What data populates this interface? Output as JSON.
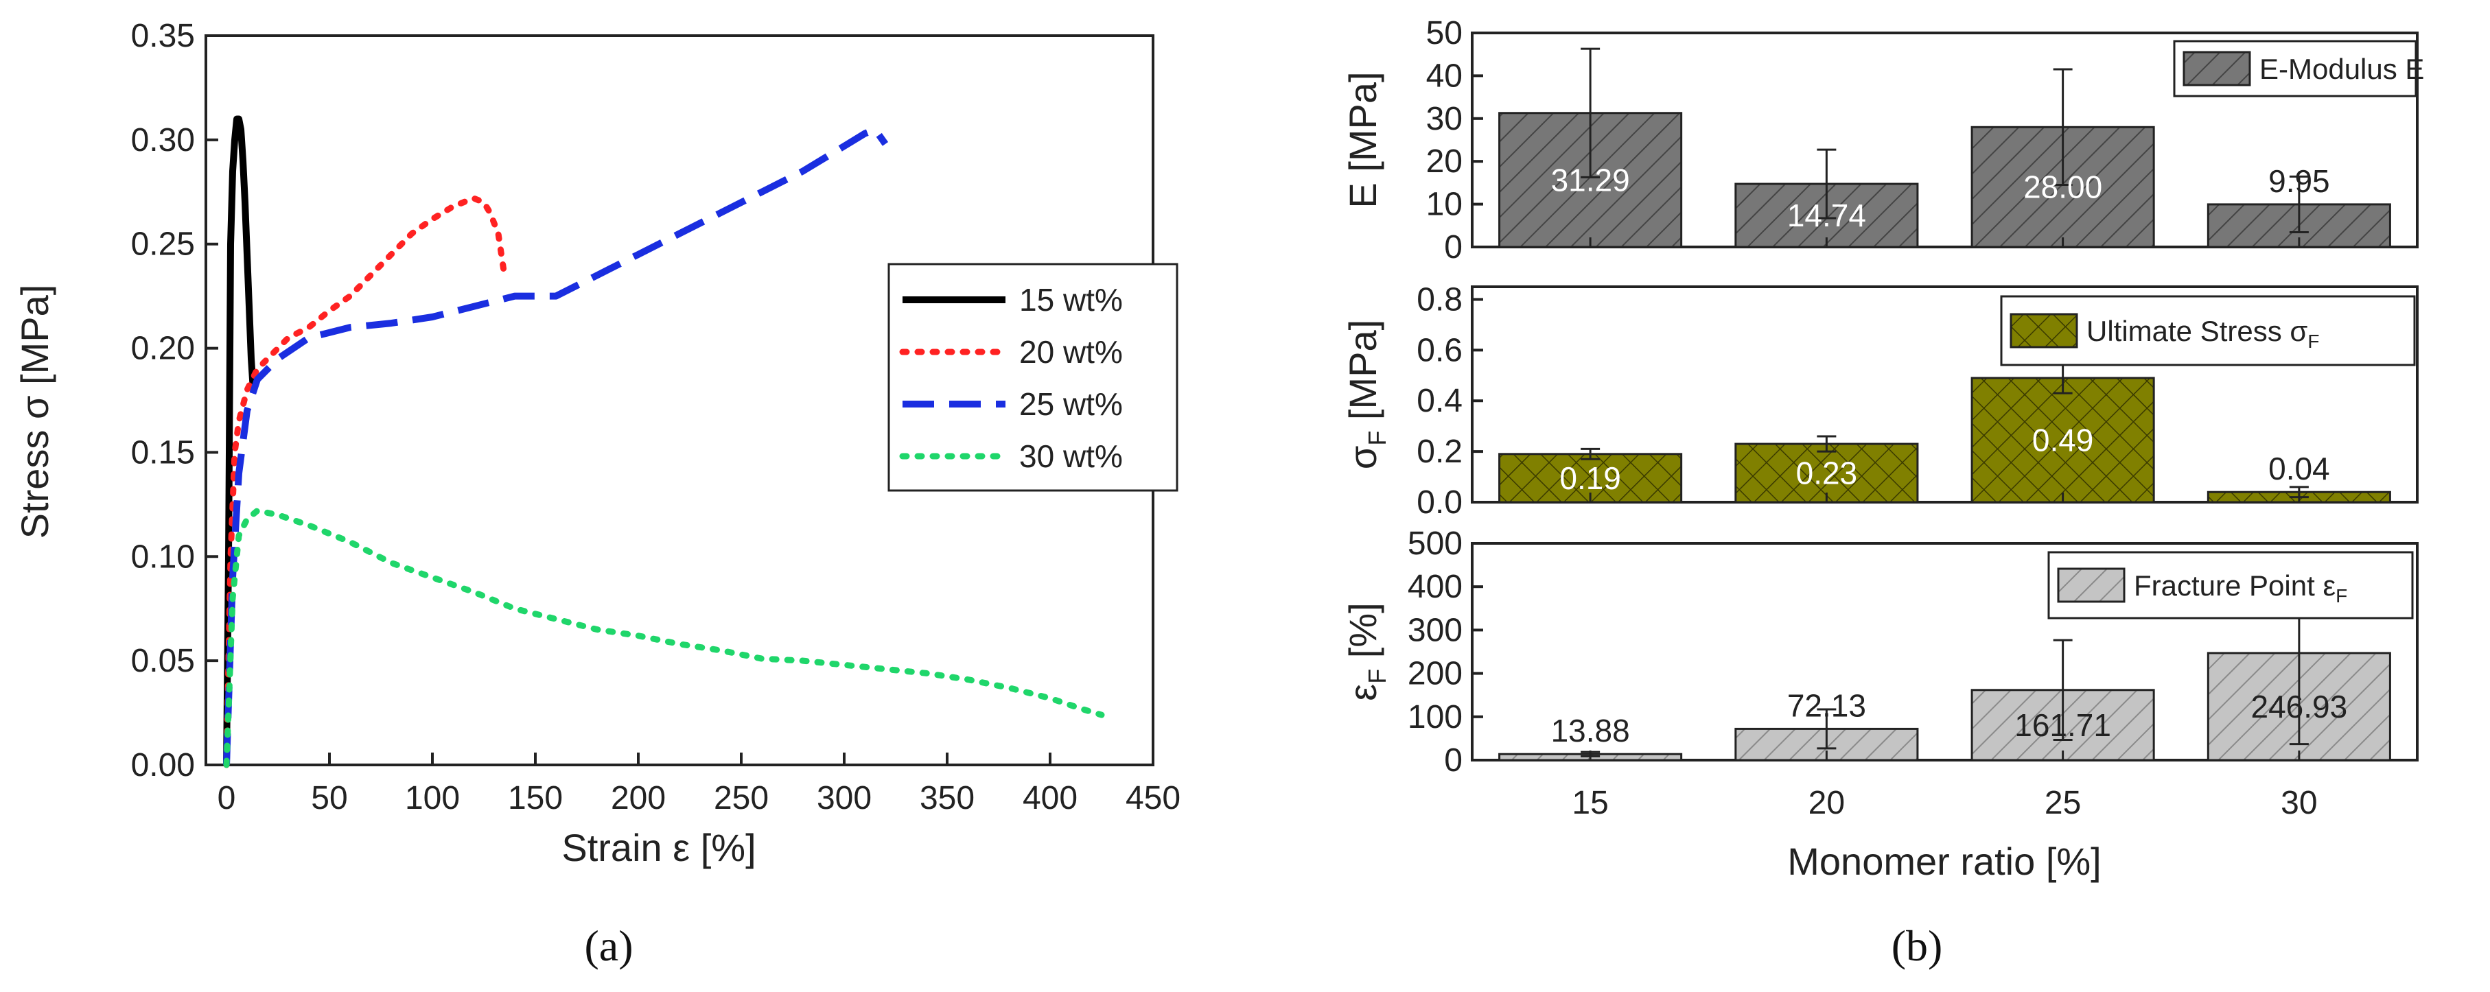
{
  "chart_data": [
    {
      "type": "line",
      "panel": "(a)",
      "xlabel": "Strain ε [%]",
      "ylabel": "Stress σ [MPa]",
      "xlim": [
        -10,
        450
      ],
      "ylim": [
        0,
        0.35
      ],
      "xticks": [
        "0",
        "50",
        "100",
        "150",
        "200",
        "250",
        "300",
        "350",
        "400",
        "450"
      ],
      "yticks": [
        "0.00",
        "0.05",
        "0.10",
        "0.15",
        "0.20",
        "0.25",
        "0.30",
        "0.35"
      ],
      "legend_position": "right",
      "series": [
        {
          "name": "15 wt%",
          "color": "#000000",
          "dash": "solid",
          "x": [
            0,
            1,
            2,
            3,
            4,
            5,
            6,
            7,
            8,
            9,
            10,
            11,
            12,
            13
          ],
          "y": [
            0,
            0.1,
            0.25,
            0.285,
            0.3,
            0.31,
            0.31,
            0.305,
            0.29,
            0.27,
            0.245,
            0.22,
            0.195,
            0.18
          ]
        },
        {
          "name": "20 wt%",
          "color": "#ff2222",
          "dash": "dot",
          "x": [
            0,
            2,
            4,
            6,
            10,
            15,
            20,
            30,
            40,
            50,
            60,
            70,
            80,
            90,
            100,
            110,
            120,
            125,
            128,
            132,
            135
          ],
          "y": [
            0,
            0.1,
            0.15,
            0.165,
            0.18,
            0.19,
            0.195,
            0.205,
            0.21,
            0.218,
            0.225,
            0.235,
            0.245,
            0.255,
            0.262,
            0.268,
            0.272,
            0.27,
            0.265,
            0.255,
            0.235
          ]
        },
        {
          "name": "25 wt%",
          "color": "#1a2ee0",
          "dash": "dash",
          "x": [
            0,
            3,
            6,
            10,
            15,
            25,
            40,
            60,
            80,
            100,
            120,
            140,
            160,
            180,
            200,
            220,
            240,
            260,
            280,
            300,
            310,
            315,
            320
          ],
          "y": [
            0,
            0.09,
            0.14,
            0.17,
            0.185,
            0.195,
            0.205,
            0.21,
            0.212,
            0.215,
            0.22,
            0.225,
            0.225,
            0.235,
            0.245,
            0.255,
            0.265,
            0.275,
            0.285,
            0.297,
            0.303,
            0.305,
            0.298
          ]
        },
        {
          "name": "30 wt%",
          "color": "#1fd66a",
          "dash": "dot",
          "x": [
            0,
            3,
            6,
            10,
            15,
            25,
            40,
            60,
            80,
            100,
            120,
            140,
            160,
            180,
            200,
            220,
            240,
            260,
            280,
            300,
            320,
            340,
            360,
            380,
            400,
            415,
            425
          ],
          "y": [
            0,
            0.08,
            0.11,
            0.118,
            0.122,
            0.12,
            0.115,
            0.107,
            0.097,
            0.09,
            0.083,
            0.075,
            0.07,
            0.065,
            0.062,
            0.058,
            0.055,
            0.051,
            0.05,
            0.048,
            0.046,
            0.044,
            0.041,
            0.037,
            0.032,
            0.027,
            0.024
          ]
        }
      ]
    },
    {
      "type": "bar",
      "panel": "(b)",
      "xlabel": "Monomer ratio [%]",
      "categories": [
        "15",
        "20",
        "25",
        "30"
      ],
      "subplots": [
        {
          "ylabel": "E [MPa]",
          "legend": "E-Modulus E",
          "ylim": [
            0,
            50
          ],
          "yticks": [
            "0",
            "10",
            "20",
            "30",
            "40",
            "50"
          ],
          "values": [
            31.29,
            14.74,
            28.0,
            9.95
          ],
          "labels": [
            "31.29",
            "14.74",
            "28.00",
            "9.95"
          ],
          "errors": [
            15,
            8,
            13.5,
            6.5
          ],
          "fill": "#777777",
          "pattern": "diagonal",
          "label_color": "#ffffff"
        },
        {
          "ylabel": "σF [MPa]",
          "legend": "Ultimate Stress σF",
          "ylim": [
            0,
            0.85
          ],
          "yticks": [
            "0.0",
            "0.2",
            "0.4",
            "0.6",
            "0.8"
          ],
          "values": [
            0.19,
            0.23,
            0.49,
            0.04
          ],
          "labels": [
            "0.19",
            "0.23",
            "0.49",
            "0.04"
          ],
          "errors": [
            0.02,
            0.03,
            0.06,
            0.02
          ],
          "fill": "#808000",
          "pattern": "crosshatch",
          "label_color": "#ffffff"
        },
        {
          "ylabel": "εF [%]",
          "legend": "Fracture Point εF",
          "ylim": [
            0,
            500
          ],
          "yticks": [
            "0",
            "100",
            "200",
            "300",
            "400",
            "500"
          ],
          "values": [
            13.88,
            72.13,
            161.71,
            246.93
          ],
          "labels": [
            "13.88",
            "72.13",
            "161.71",
            "246.93"
          ],
          "errors": [
            5,
            45,
            115,
            210
          ],
          "fill": "#c0c0c0",
          "pattern": "diagonal",
          "label_color": "#222222"
        }
      ]
    }
  ],
  "captions": {
    "a": "(a)",
    "b": "(b)"
  }
}
